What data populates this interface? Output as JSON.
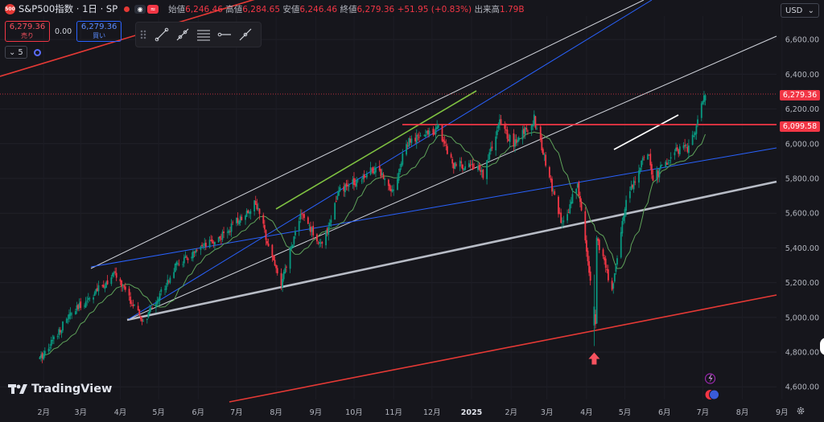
{
  "header": {
    "symbol_title": "S&P500指数 · 1日 · SP",
    "logo_text": "500",
    "open_label": "始値",
    "open": "6,246.46",
    "high_label": "高値",
    "high": "6,284.65",
    "low_label": "安値",
    "low": "6,246.46",
    "close_label": "終値",
    "close": "6,279.36",
    "change": "+51.95 (+0.83%)",
    "volume_label": "出来高",
    "volume": "1.79B"
  },
  "trade": {
    "sell_price": "6,279.36",
    "sell_label": "売り",
    "spread": "0.00",
    "buy_price": "6,279.36",
    "buy_label": "買い"
  },
  "indicators": {
    "count": "5"
  },
  "currency": "USD",
  "price_labels": {
    "last": "6,279.36",
    "level": "6,099.58",
    "last_color": "#f23645",
    "level_color": "#f23645"
  },
  "brand": "TradingView",
  "colors": {
    "up": "#089981",
    "down": "#f23645",
    "ma": "#5fa35a",
    "bg": "#16161c"
  },
  "chart_data": {
    "type": "candlestick",
    "x_tick_labels": [
      "2月",
      "3月",
      "4月",
      "5月",
      "6月",
      "7月",
      "8月",
      "9月",
      "10月",
      "11月",
      "12月",
      "2025",
      "2月",
      "3月",
      "4月",
      "5月",
      "6月",
      "7月",
      "8月",
      "9月"
    ],
    "y_tick_labels": [
      "4,600.00",
      "4,800.00",
      "5,000.00",
      "5,200.00",
      "5,400.00",
      "5,600.00",
      "5,800.00",
      "6,000.00",
      "6,200.00",
      "6,400.00",
      "6,600.00"
    ],
    "y_range": [
      4490,
      6735
    ],
    "horizontal_level": 6099.58,
    "last_price": 6279.36,
    "close_path": [
      [
        "2024-01-29",
        4760
      ],
      [
        "2024-02-20",
        5000
      ],
      [
        "2024-03-28",
        5250
      ],
      [
        "2024-04-19",
        4967
      ],
      [
        "2024-05-15",
        5300
      ],
      [
        "2024-06-20",
        5470
      ],
      [
        "2024-07-16",
        5660
      ],
      [
        "2024-08-05",
        5186
      ],
      [
        "2024-08-20",
        5600
      ],
      [
        "2024-09-06",
        5408
      ],
      [
        "2024-09-19",
        5720
      ],
      [
        "2024-10-18",
        5865
      ],
      [
        "2024-11-01",
        5730
      ],
      [
        "2024-11-11",
        6000
      ],
      [
        "2024-12-06",
        6090
      ],
      [
        "2024-12-18",
        5875
      ],
      [
        "2024-12-31",
        5880
      ],
      [
        "2025-01-10",
        5827
      ],
      [
        "2025-01-23",
        6118
      ],
      [
        "2025-02-03",
        5995
      ],
      [
        "2025-02-19",
        6144
      ],
      [
        "2025-03-13",
        5520
      ],
      [
        "2025-03-25",
        5776
      ],
      [
        "2025-04-08",
        4982
      ],
      [
        "2025-04-09",
        5456
      ],
      [
        "2025-04-21",
        5158
      ],
      [
        "2025-05-02",
        5686
      ],
      [
        "2025-05-19",
        5963
      ],
      [
        "2025-05-23",
        5800
      ],
      [
        "2025-06-13",
        5977
      ],
      [
        "2025-06-20",
        5967
      ],
      [
        "2025-07-03",
        6279
      ]
    ]
  }
}
